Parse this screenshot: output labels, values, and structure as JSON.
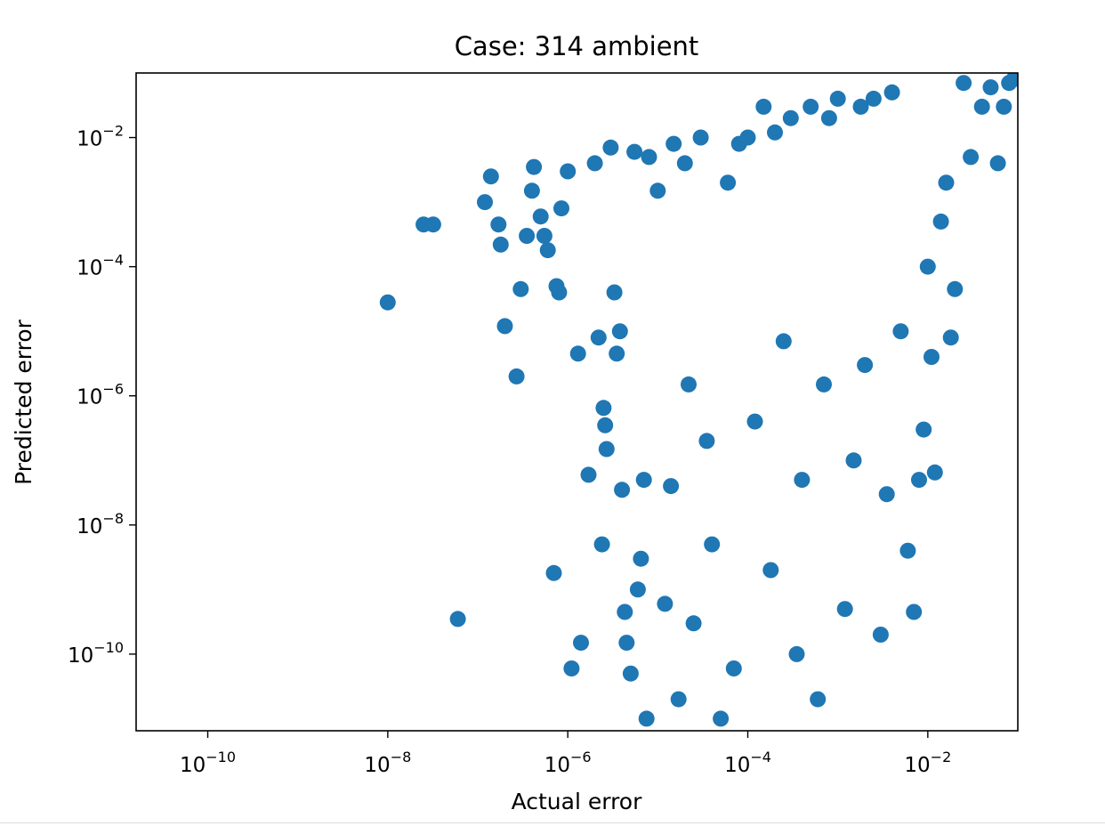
{
  "chart_data": {
    "type": "scatter",
    "title": "Case: 314 ambient",
    "xlabel": "Actual error",
    "ylabel": "Predicted error",
    "x_scale": "log",
    "y_scale": "log",
    "xlim": [
      1.6e-11,
      0.1
    ],
    "ylim": [
      6.5e-12,
      0.1
    ],
    "x_ticks": [
      {
        "base": "10",
        "exp": "−10",
        "value": 1e-10
      },
      {
        "base": "10",
        "exp": "−8",
        "value": 1e-08
      },
      {
        "base": "10",
        "exp": "−6",
        "value": 1e-06
      },
      {
        "base": "10",
        "exp": "−4",
        "value": 0.0001
      },
      {
        "base": "10",
        "exp": "−2",
        "value": 0.01
      }
    ],
    "y_ticks": [
      {
        "base": "10",
        "exp": "−2",
        "value": 0.01
      },
      {
        "base": "10",
        "exp": "−4",
        "value": 0.0001
      },
      {
        "base": "10",
        "exp": "−6",
        "value": 1e-06
      },
      {
        "base": "10",
        "exp": "−8",
        "value": 1e-08
      },
      {
        "base": "10",
        "exp": "−10",
        "value": 1e-10
      }
    ],
    "grid": false,
    "legend": "none",
    "marker_color": "#1f77b4",
    "series": [
      {
        "points": [
          [
            1e-08,
            2.8e-05
          ],
          [
            2.5e-08,
            0.00045
          ],
          [
            3.2e-08,
            0.00045
          ],
          [
            6e-08,
            3.5e-10
          ],
          [
            1.2e-07,
            0.001
          ],
          [
            1.4e-07,
            0.0025
          ],
          [
            1.7e-07,
            0.00045
          ],
          [
            1.8e-07,
            0.00022
          ],
          [
            2e-07,
            1.2e-05
          ],
          [
            2.7e-07,
            2e-06
          ],
          [
            3e-07,
            4.5e-05
          ],
          [
            3.5e-07,
            0.0003
          ],
          [
            4e-07,
            0.0015
          ],
          [
            4.2e-07,
            0.0035
          ],
          [
            5e-07,
            0.0006
          ],
          [
            5.5e-07,
            0.0003
          ],
          [
            6e-07,
            0.00018
          ],
          [
            7e-07,
            1.8e-09
          ],
          [
            7.5e-07,
            5e-05
          ],
          [
            8e-07,
            4e-05
          ],
          [
            8.5e-07,
            0.0008
          ],
          [
            1e-06,
            0.003
          ],
          [
            1.1e-06,
            6e-11
          ],
          [
            1.3e-06,
            4.5e-06
          ],
          [
            1.4e-06,
            1.5e-10
          ],
          [
            1.7e-06,
            6e-08
          ],
          [
            2e-06,
            0.004
          ],
          [
            2.2e-06,
            8e-06
          ],
          [
            2.4e-06,
            5e-09
          ],
          [
            2.5e-06,
            6.5e-07
          ],
          [
            2.6e-06,
            3.5e-07
          ],
          [
            2.7e-06,
            1.5e-07
          ],
          [
            3e-06,
            0.007
          ],
          [
            3.3e-06,
            4e-05
          ],
          [
            3.5e-06,
            4.5e-06
          ],
          [
            3.8e-06,
            1e-05
          ],
          [
            4e-06,
            3.5e-08
          ],
          [
            4.3e-06,
            4.5e-10
          ],
          [
            4.5e-06,
            1.5e-10
          ],
          [
            5e-06,
            5e-11
          ],
          [
            5.5e-06,
            0.006
          ],
          [
            6e-06,
            1e-09
          ],
          [
            6.5e-06,
            3e-09
          ],
          [
            7e-06,
            5e-08
          ],
          [
            7.5e-06,
            1e-11
          ],
          [
            8e-06,
            0.005
          ],
          [
            1e-05,
            0.0015
          ],
          [
            1.2e-05,
            6e-10
          ],
          [
            1.4e-05,
            4e-08
          ],
          [
            1.5e-05,
            0.008
          ],
          [
            1.7e-05,
            2e-11
          ],
          [
            2e-05,
            0.004
          ],
          [
            2.2e-05,
            1.5e-06
          ],
          [
            2.5e-05,
            3e-10
          ],
          [
            3e-05,
            0.01
          ],
          [
            3.5e-05,
            2e-07
          ],
          [
            4e-05,
            5e-09
          ],
          [
            5e-05,
            1e-11
          ],
          [
            6e-05,
            0.002
          ],
          [
            7e-05,
            6e-11
          ],
          [
            8e-05,
            0.008
          ],
          [
            0.0001,
            0.01
          ],
          [
            0.00012,
            4e-07
          ],
          [
            0.00015,
            0.03
          ],
          [
            0.00018,
            2e-09
          ],
          [
            0.0002,
            0.012
          ],
          [
            0.00025,
            7e-06
          ],
          [
            0.0003,
            0.02
          ],
          [
            0.00035,
            1e-10
          ],
          [
            0.0004,
            5e-08
          ],
          [
            0.0005,
            0.03
          ],
          [
            0.0006,
            2e-11
          ],
          [
            0.0007,
            1.5e-06
          ],
          [
            0.0008,
            0.02
          ],
          [
            0.001,
            0.04
          ],
          [
            0.0012,
            5e-10
          ],
          [
            0.0015,
            1e-07
          ],
          [
            0.0018,
            0.03
          ],
          [
            0.002,
            3e-06
          ],
          [
            0.0025,
            0.04
          ],
          [
            0.003,
            2e-10
          ],
          [
            0.0035,
            3e-08
          ],
          [
            0.004,
            0.05
          ],
          [
            0.005,
            1e-05
          ],
          [
            0.006,
            4e-09
          ],
          [
            0.007,
            4.5e-10
          ],
          [
            0.008,
            5e-08
          ],
          [
            0.009,
            3e-07
          ],
          [
            0.01,
            0.0001
          ],
          [
            0.011,
            4e-06
          ],
          [
            0.012,
            6.5e-08
          ],
          [
            0.014,
            0.0005
          ],
          [
            0.016,
            0.002
          ],
          [
            0.018,
            8e-06
          ],
          [
            0.02,
            4.5e-05
          ],
          [
            0.025,
            0.07
          ],
          [
            0.03,
            0.005
          ],
          [
            0.04,
            0.03
          ],
          [
            0.05,
            0.06
          ],
          [
            0.06,
            0.004
          ],
          [
            0.07,
            0.03
          ],
          [
            0.08,
            0.07
          ],
          [
            0.09,
            0.08
          ]
        ]
      }
    ]
  }
}
